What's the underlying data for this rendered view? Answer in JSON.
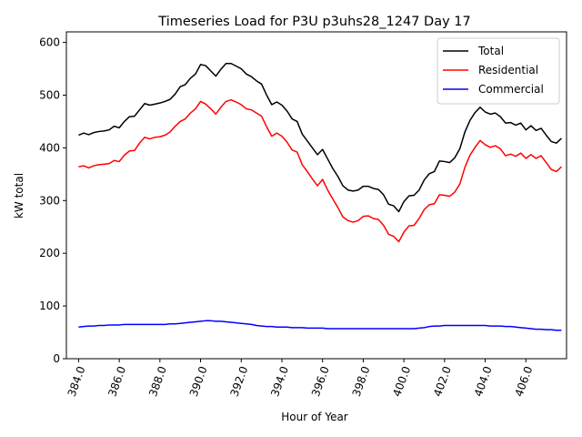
{
  "chart_data": {
    "type": "line",
    "title": "Timeseries Load for P3U p3uhs28_1247  Day 17",
    "xlabel": "Hour of Year",
    "ylabel": "kW total",
    "xlim": [
      383.4,
      408.0
    ],
    "ylim": [
      0,
      620
    ],
    "xticks": [
      384.0,
      386.0,
      388.0,
      390.0,
      392.0,
      394.0,
      396.0,
      398.0,
      400.0,
      402.0,
      404.0,
      406.0
    ],
    "xtick_labels": [
      "384.0",
      "386.0",
      "388.0",
      "390.0",
      "392.0",
      "394.0",
      "396.0",
      "398.0",
      "400.0",
      "402.0",
      "404.0",
      "406.0"
    ],
    "yticks": [
      0,
      100,
      200,
      300,
      400,
      500,
      600
    ],
    "ytick_labels": [
      "0",
      "100",
      "200",
      "300",
      "400",
      "500",
      "600"
    ],
    "grid": false,
    "legend_position": "top-right",
    "x_start": 384.0,
    "x_step": 0.25,
    "series": [
      {
        "name": "Total",
        "color": "#000000",
        "values": [
          424,
          428,
          425,
          429,
          431,
          432,
          434,
          441,
          438,
          450,
          459,
          460,
          472,
          484,
          481,
          483,
          485,
          488,
          492,
          502,
          516,
          520,
          532,
          540,
          558,
          556,
          546,
          536,
          549,
          560,
          560,
          555,
          550,
          540,
          535,
          527,
          521,
          500,
          482,
          487,
          481,
          470,
          455,
          450,
          426,
          413,
          400,
          387,
          397,
          379,
          361,
          346,
          328,
          320,
          318,
          320,
          327,
          327,
          323,
          321,
          311,
          293,
          290,
          279,
          298,
          309,
          310,
          320,
          339,
          351,
          355,
          375,
          374,
          372,
          381,
          398,
          430,
          452,
          467,
          477,
          468,
          464,
          466,
          459,
          447,
          448,
          443,
          447,
          434,
          442,
          433,
          437,
          424,
          412,
          409,
          418
        ]
      },
      {
        "name": "Residential",
        "color": "#ff0000",
        "values": [
          364,
          366,
          362,
          366,
          368,
          369,
          370,
          376,
          374,
          386,
          394,
          395,
          409,
          420,
          417,
          420,
          421,
          424,
          430,
          441,
          450,
          455,
          466,
          474,
          488,
          483,
          474,
          464,
          477,
          488,
          491,
          487,
          482,
          474,
          472,
          466,
          460,
          440,
          422,
          428,
          422,
          411,
          396,
          392,
          368,
          355,
          341,
          328,
          340,
          320,
          303,
          287,
          269,
          262,
          259,
          262,
          270,
          271,
          266,
          264,
          253,
          236,
          232,
          222,
          240,
          252,
          253,
          266,
          283,
          292,
          294,
          311,
          310,
          308,
          316,
          331,
          363,
          386,
          401,
          414,
          406,
          401,
          404,
          398,
          385,
          388,
          384,
          390,
          380,
          387,
          380,
          385,
          372,
          359,
          355,
          364
        ]
      },
      {
        "name": "Commercial",
        "color": "#0000ff",
        "values": [
          60,
          61,
          62,
          62,
          63,
          63,
          64,
          64,
          64,
          65,
          65,
          65,
          65,
          65,
          65,
          65,
          65,
          65,
          66,
          66,
          67,
          68,
          69,
          70,
          71,
          72,
          72,
          71,
          71,
          70,
          69,
          68,
          67,
          66,
          65,
          63,
          62,
          61,
          61,
          60,
          60,
          60,
          59,
          59,
          59,
          58,
          58,
          58,
          58,
          57,
          57,
          57,
          57,
          57,
          57,
          57,
          57,
          57,
          57,
          57,
          57,
          57,
          57,
          57,
          57,
          57,
          57,
          58,
          59,
          61,
          62,
          62,
          63,
          63,
          63,
          63,
          63,
          63,
          63,
          63,
          63,
          62,
          62,
          62,
          61,
          61,
          60,
          59,
          58,
          57,
          56,
          56,
          55,
          55,
          54,
          54
        ]
      }
    ]
  }
}
